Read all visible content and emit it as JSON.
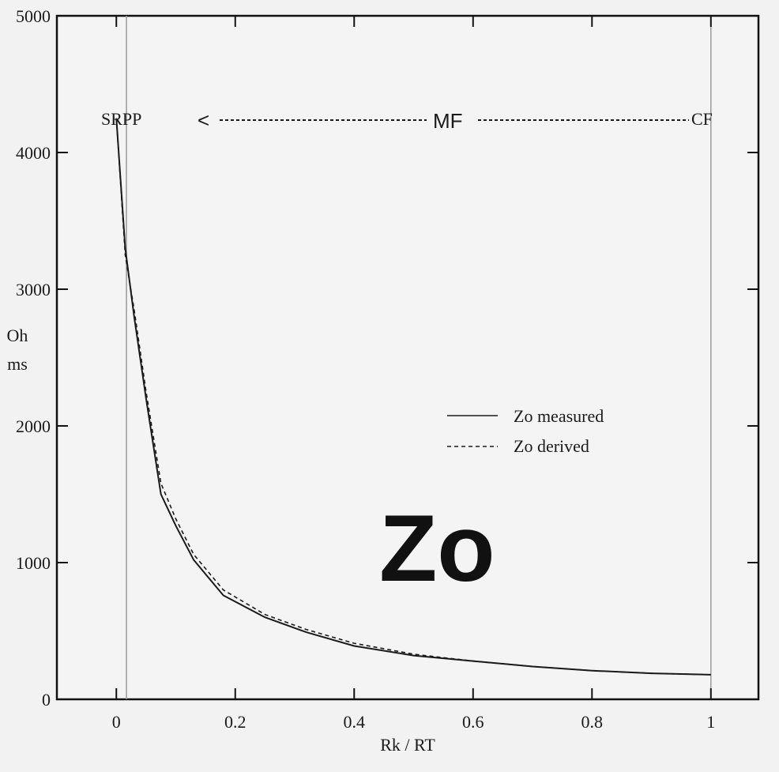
{
  "chart_data": {
    "type": "line",
    "title": "",
    "xlabel": "Rk / RT",
    "ylabel": "Oh ms",
    "ylabel_lines": [
      "Oh",
      "ms"
    ],
    "xlim": [
      -0.1,
      1.08
    ],
    "ylim": [
      0,
      5000
    ],
    "x_ticks": [
      0,
      0.2,
      0.4,
      0.6,
      0.8,
      1
    ],
    "x_tick_labels": [
      "0",
      "0.2",
      "0.4",
      "0.6",
      "0.8",
      "1"
    ],
    "y_ticks": [
      0,
      1000,
      2000,
      3000,
      4000,
      5000
    ],
    "y_tick_labels": [
      "0",
      "1000",
      "2000",
      "3000",
      "4000",
      "5000"
    ],
    "grid": false,
    "legend_position": "center-right",
    "reference_lines_x": [
      0.017,
      1
    ],
    "series": [
      {
        "name": "Zo measured",
        "style": "solid",
        "color": "#1a1a1a",
        "x": [
          0,
          0.015,
          0.03,
          0.05,
          0.075,
          0.1,
          0.13,
          0.18,
          0.25,
          0.32,
          0.4,
          0.5,
          0.6,
          0.7,
          0.8,
          0.9,
          1
        ],
        "y": [
          4250,
          3300,
          2800,
          2200,
          1500,
          1270,
          1020,
          760,
          600,
          490,
          390,
          320,
          280,
          240,
          210,
          190,
          180
        ]
      },
      {
        "name": "Zo derived",
        "style": "dashed",
        "color": "#1a1a1a",
        "x": [
          0,
          0.015,
          0.03,
          0.05,
          0.075,
          0.1,
          0.13,
          0.18,
          0.25,
          0.32,
          0.4,
          0.5,
          0.6,
          0.7,
          0.8,
          0.9,
          1
        ],
        "y": [
          4250,
          3250,
          2850,
          2250,
          1580,
          1320,
          1060,
          800,
          620,
          510,
          410,
          330,
          280,
          240,
          210,
          190,
          180
        ]
      }
    ],
    "annotations": {
      "srpp": "SRPP",
      "mf": "MF",
      "mf_arrow": "<",
      "cf": "CF",
      "big": "Zo"
    }
  }
}
